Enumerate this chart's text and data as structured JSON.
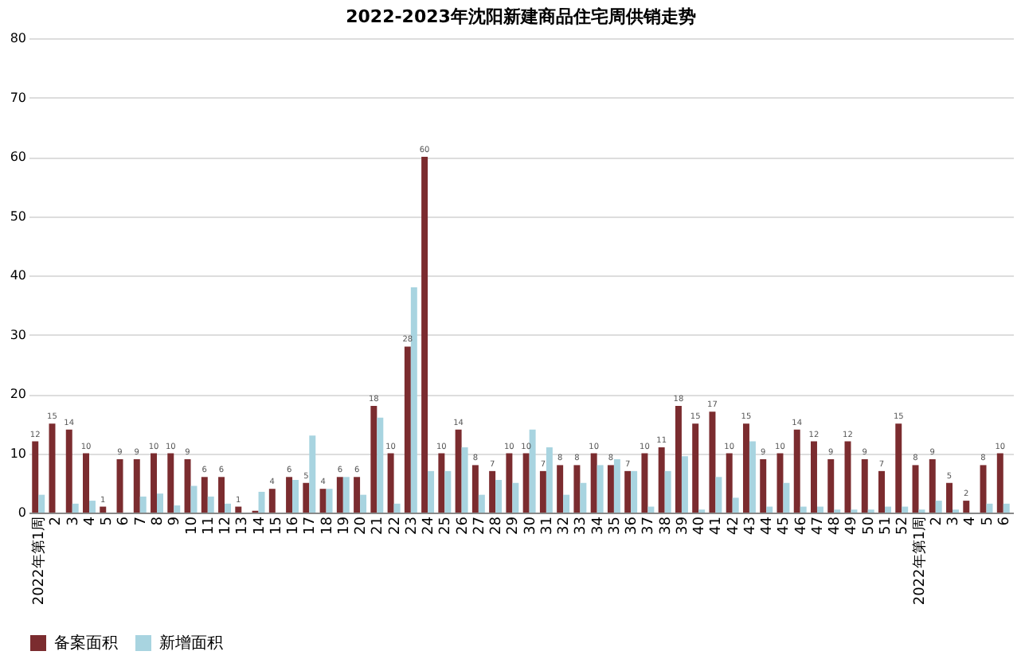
{
  "chart_data": {
    "type": "bar",
    "title": "2022-2023年沈阳新建商品住宅周供销走势",
    "categories": [
      "2022年第1周",
      "2",
      "3",
      "4",
      "5",
      "6",
      "7",
      "8",
      "9",
      "10",
      "11",
      "12",
      "13",
      "14",
      "15",
      "16",
      "17",
      "18",
      "19",
      "20",
      "21",
      "22",
      "23",
      "24",
      "25",
      "26",
      "27",
      "28",
      "29",
      "30",
      "31",
      "32",
      "33",
      "34",
      "35",
      "36",
      "37",
      "38",
      "39",
      "40",
      "41",
      "42",
      "43",
      "44",
      "45",
      "46",
      "47",
      "48",
      "49",
      "50",
      "51",
      "52",
      "2022年第1周",
      "2",
      "3",
      "4",
      "5",
      "6"
    ],
    "series": [
      {
        "name": "备案面积",
        "color": "#7b2c2f",
        "values": [
          12,
          15,
          14,
          10,
          1,
          9,
          9,
          10,
          10,
          9,
          6,
          6,
          1,
          0.3,
          4,
          6,
          5,
          4,
          6,
          6,
          18,
          10,
          28,
          60,
          10,
          14,
          8,
          7,
          10,
          10,
          7,
          8,
          8,
          10,
          8,
          7,
          10,
          11,
          18,
          15,
          17,
          10,
          15,
          9,
          10,
          14,
          12,
          9,
          12,
          9,
          7,
          15,
          8,
          9,
          5,
          2,
          8,
          10
        ],
        "value_labels": [
          "12",
          "15",
          "14",
          "10",
          "1",
          "9",
          "9",
          "10",
          "10",
          "9",
          "6",
          "6",
          "1",
          null,
          "4",
          "6",
          "5",
          "4",
          "6",
          "6",
          "18",
          "10",
          "28",
          "60",
          "10",
          "14",
          "8",
          "7",
          "10",
          "10",
          "7",
          "8",
          "8",
          "10",
          "8",
          "7",
          "10",
          "11",
          "18",
          "15",
          "17",
          "10",
          "15",
          "9",
          "10",
          "14",
          "12",
          "9",
          "12",
          "9",
          "7",
          "15",
          "8",
          "9",
          "5",
          "2",
          "8",
          "10"
        ]
      },
      {
        "name": "新增面积",
        "color": "#a8d4e0",
        "values": [
          3,
          0,
          1.5,
          2,
          0,
          0,
          2.7,
          3.2,
          1.2,
          4.5,
          2.7,
          1.5,
          0,
          3.5,
          0,
          5.5,
          13,
          4,
          6,
          3,
          16,
          1.5,
          38,
          7,
          7,
          11,
          3,
          5.5,
          5,
          14,
          11,
          3,
          5,
          8,
          9,
          7,
          1,
          7,
          9.5,
          0.5,
          6,
          2.5,
          12,
          1,
          5,
          1,
          1,
          0.5,
          0.5,
          0.5,
          1,
          1,
          0.5,
          2,
          0.5,
          0,
          1.5,
          1.5
        ]
      }
    ],
    "ylim": [
      0,
      80
    ],
    "yticks": [
      0,
      10,
      20,
      30,
      40,
      50,
      60,
      70,
      80
    ],
    "grid": "y",
    "legend": "bottom"
  }
}
